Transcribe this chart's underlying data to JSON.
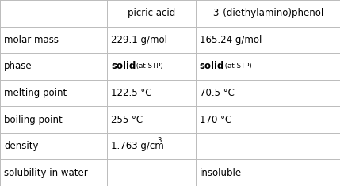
{
  "col_headers": [
    "",
    "picric acid",
    "3–(diethylamino)phenol"
  ],
  "rows": [
    {
      "label": "molar mass",
      "col1": {
        "text": "229.1 g/mol",
        "type": "plain"
      },
      "col2": {
        "text": "165.24 g/mol",
        "type": "plain"
      }
    },
    {
      "label": "phase",
      "col1": {
        "type": "mixed",
        "main": "solid",
        "sub": " (at STP)"
      },
      "col2": {
        "type": "mixed",
        "main": "solid",
        "sub": " (at STP)"
      }
    },
    {
      "label": "melting point",
      "col1": {
        "text": "122.5 °C",
        "type": "plain"
      },
      "col2": {
        "text": "70.5 °C",
        "type": "plain"
      }
    },
    {
      "label": "boiling point",
      "col1": {
        "text": "255 °C",
        "type": "plain"
      },
      "col2": {
        "text": "170 °C",
        "type": "plain"
      }
    },
    {
      "label": "density",
      "col1": {
        "type": "superscript",
        "main": "1.763 g/cm",
        "sup": "3"
      },
      "col2": {
        "text": "",
        "type": "plain"
      }
    },
    {
      "label": "solubility in water",
      "col1": {
        "text": "",
        "type": "plain"
      },
      "col2": {
        "text": "insoluble",
        "type": "plain"
      }
    }
  ],
  "bg_color": "#ffffff",
  "line_color": "#bbbbbb",
  "text_color": "#000000",
  "header_font_size": 8.5,
  "label_font_size": 8.5,
  "cell_font_size": 8.5,
  "sub_font_size": 6.2,
  "v_lines": [
    0.0,
    0.315,
    0.575,
    1.0
  ],
  "figsize": [
    4.29,
    2.35
  ],
  "dpi": 100
}
